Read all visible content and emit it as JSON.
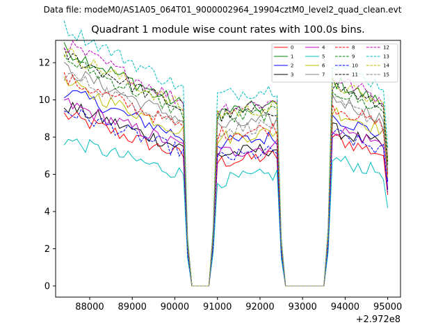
{
  "header": {
    "suptitle": "Data file: modeM0/AS1A05_064T01_9000002964_19904cztM0_level2_quad_clean.evt",
    "title": "Quadrant 1 module wise count rates with 100.0s bins."
  },
  "chart_data": {
    "type": "line",
    "title": "Quadrant 1 module wise count rates with 100.0s bins.",
    "xlabel": "",
    "ylabel": "",
    "x_offset_label": "+2.972e8",
    "xlim": [
      87200,
      95300
    ],
    "ylim": [
      -0.6,
      13.2
    ],
    "xticks": [
      88000,
      89000,
      90000,
      91000,
      92000,
      93000,
      94000,
      95000
    ],
    "xtick_labels": [
      "88000",
      "89000",
      "90000",
      "91000",
      "92000",
      "93000",
      "94000",
      "95000"
    ],
    "yticks": [
      0,
      2,
      4,
      6,
      8,
      10,
      12
    ],
    "ytick_labels": [
      "0",
      "2",
      "4",
      "6",
      "8",
      "10",
      "12"
    ],
    "grid": false,
    "legend_position": "top-right",
    "legend_columns": 4,
    "segments": [
      {
        "start": 87400,
        "end": 90200,
        "slope": -0.000929
      },
      {
        "start": 90900,
        "end": 92400,
        "slope": 0.000207
      },
      {
        "start": 93600,
        "end": 95000,
        "slope": -0.000929
      }
    ],
    "gap_ranges": [
      [
        90400,
        90800
      ],
      [
        92600,
        93500
      ]
    ],
    "series": [
      {
        "name": "0",
        "color": "#ff0000",
        "dash": "solid",
        "level": 7.0
      },
      {
        "name": "1",
        "color": "#008000",
        "dash": "solid",
        "level": 9.7
      },
      {
        "name": "2",
        "color": "#0000ff",
        "dash": "solid",
        "level": 8.0
      },
      {
        "name": "3",
        "color": "#000000",
        "dash": "solid",
        "level": 7.4
      },
      {
        "name": "4",
        "color": "#bf00bf",
        "dash": "solid",
        "level": 7.5
      },
      {
        "name": "5",
        "color": "#00bfbf",
        "dash": "solid",
        "level": 6.0
      },
      {
        "name": "6",
        "color": "#bfbf00",
        "dash": "solid",
        "level": 8.3
      },
      {
        "name": "7",
        "color": "#808080",
        "dash": "solid",
        "level": 8.9
      },
      {
        "name": "8",
        "color": "#ff0000",
        "dash": "dashed",
        "level": 8.5
      },
      {
        "name": "9",
        "color": "#008000",
        "dash": "dashed",
        "level": 9.3
      },
      {
        "name": "10",
        "color": "#0000ff",
        "dash": "dashed",
        "level": 7.2
      },
      {
        "name": "11",
        "color": "#000000",
        "dash": "dashed",
        "level": 9.5
      },
      {
        "name": "12",
        "color": "#bf00bf",
        "dash": "dashed",
        "level": 9.9
      },
      {
        "name": "13",
        "color": "#00bfbf",
        "dash": "dashed",
        "level": 10.6
      },
      {
        "name": "14",
        "color": "#bfbf00",
        "dash": "dashed",
        "level": 9.6
      },
      {
        "name": "15",
        "color": "#808080",
        "dash": "dashed",
        "level": 8.7
      }
    ]
  }
}
